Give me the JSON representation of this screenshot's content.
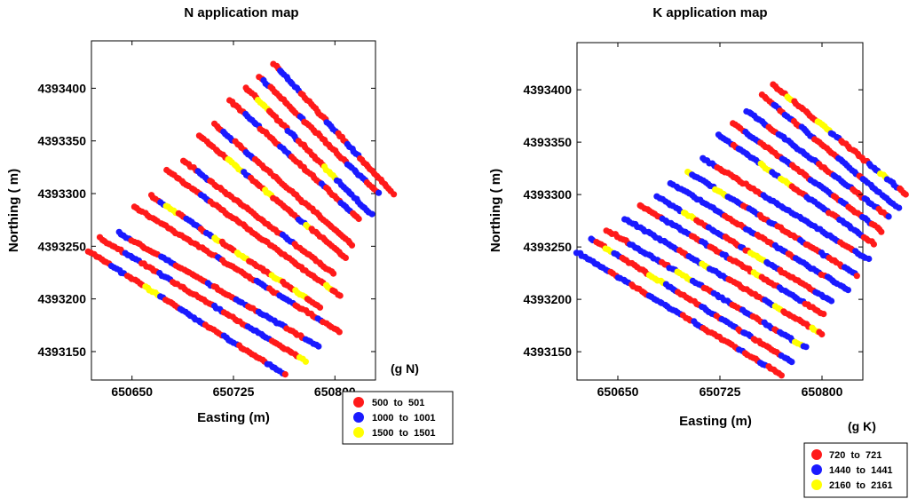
{
  "chart_data": [
    {
      "type": "scatter",
      "title": "N application map",
      "xlabel": "Easting (m)",
      "ylabel": "Northing ( m)",
      "unit_label": "(g N)",
      "xticks": [
        "650650",
        "650725",
        "650800"
      ],
      "xtick_values": [
        650650,
        650725,
        650800
      ],
      "yticks": [
        "4393400",
        "4393350",
        "4393300",
        "4393250",
        "4393200",
        "4393150"
      ],
      "ytick_values": [
        4393400,
        4393350,
        4393300,
        4393250,
        4393200,
        4393150
      ],
      "xlim": [
        650620,
        650830
      ],
      "ylim": [
        4393123,
        4393445
      ],
      "rows": {
        "count": 13,
        "start_x": [
          650618,
          650626,
          650640,
          650652,
          650664,
          650676,
          650688,
          650700,
          650711,
          650722,
          650734,
          650744,
          650755
        ],
        "start_y": [
          4393245,
          4393258,
          4393263,
          4393287,
          4393298,
          4393322,
          4393331,
          4393355,
          4393366,
          4393389,
          4393401,
          4393411,
          4393423
        ],
        "end_x": [
          650763,
          650778,
          650788,
          650803,
          650789,
          650804,
          650799,
          650808,
          650813,
          650818,
          650827,
          650832,
          650843
        ],
        "end_y": [
          4393128,
          4393141,
          4393155,
          4393169,
          4393192,
          4393203,
          4393224,
          4393239,
          4393251,
          4393276,
          4393280,
          4393300,
          4393300
        ]
      },
      "legend": [
        {
          "label": "500  to  501",
          "color": "#ff1a1a"
        },
        {
          "label": "1000  to  1001",
          "color": "#1a1aff"
        },
        {
          "label": "1500  to  1501",
          "color": "#ffff00"
        }
      ],
      "series": [
        {
          "name": "500  to  501",
          "color": "#ff1a1a",
          "share": 0.72
        },
        {
          "name": "1000  to  1001",
          "color": "#1a1aff",
          "share": 0.22
        },
        {
          "name": "1500  to  1501",
          "color": "#ffff00",
          "share": 0.06
        }
      ]
    },
    {
      "type": "scatter",
      "title": "K application map",
      "xlabel": "Easting (m)",
      "ylabel": "Northing ( m)",
      "unit_label": "(g K)",
      "xticks": [
        "650650",
        "650725",
        "650800"
      ],
      "xtick_values": [
        650650,
        650725,
        650800
      ],
      "yticks": [
        "4393400",
        "4393350",
        "4393300",
        "4393250",
        "4393200",
        "4393150"
      ],
      "ytick_values": [
        4393400,
        4393350,
        4393300,
        4393250,
        4393200,
        4393150
      ],
      "xlim": [
        650620,
        650830
      ],
      "ylim": [
        4393123,
        4393445
      ],
      "rows": {
        "count": 14,
        "start_x": [
          650620,
          650630,
          650642,
          650655,
          650666,
          650679,
          650689,
          650701,
          650712,
          650724,
          650735,
          650745,
          650756,
          650764
        ],
        "start_y": [
          4393245,
          4393258,
          4393266,
          4393277,
          4393290,
          4393298,
          4393311,
          4393322,
          4393335,
          4393357,
          4393368,
          4393380,
          4393395,
          4393405
        ],
        "end_x": [
          650770,
          650778,
          650788,
          650800,
          650801,
          650807,
          650819,
          650826,
          650834,
          650838,
          650844,
          650849,
          650856,
          650862
        ],
        "end_y": [
          4393128,
          4393140,
          4393154,
          4393167,
          4393186,
          4393198,
          4393209,
          4393223,
          4393238,
          4393253,
          4393265,
          4393279,
          4393287,
          4393300
        ]
      },
      "legend": [
        {
          "label": "720  to  721",
          "color": "#ff1a1a"
        },
        {
          "label": "1440  to  1441",
          "color": "#1a1aff"
        },
        {
          "label": "2160  to  2161",
          "color": "#ffff00"
        }
      ],
      "series": [
        {
          "name": "720  to  721",
          "color": "#ff1a1a",
          "share": 0.45
        },
        {
          "name": "1440  to  1441",
          "color": "#1a1aff",
          "share": 0.5
        },
        {
          "name": "2160  to  2161",
          "color": "#ffff00",
          "share": 0.05
        }
      ]
    }
  ]
}
